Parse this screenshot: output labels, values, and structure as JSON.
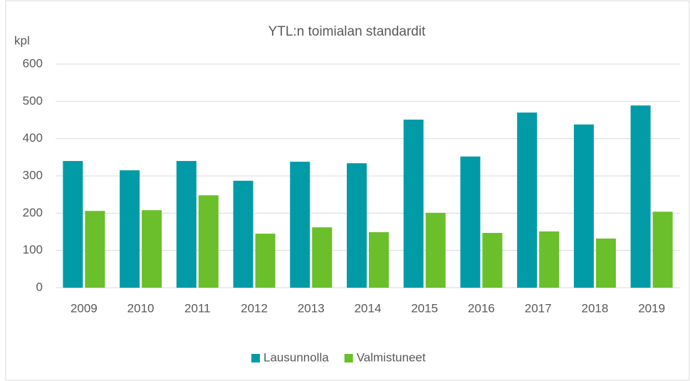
{
  "chart_data": {
    "type": "bar",
    "title": "YTL:n toimialan standardit",
    "ylabel": "kpl",
    "categories": [
      "2009",
      "2010",
      "2011",
      "2012",
      "2013",
      "2014",
      "2015",
      "2016",
      "2017",
      "2018",
      "2019"
    ],
    "series": [
      {
        "name": "Lausunnolla",
        "color": "#009ba7",
        "values": [
          340,
          315,
          340,
          287,
          338,
          334,
          451,
          352,
          470,
          438,
          489
        ]
      },
      {
        "name": "Valmistuneet",
        "color": "#6abf2a",
        "values": [
          206,
          208,
          248,
          145,
          162,
          149,
          201,
          147,
          151,
          132,
          204
        ]
      }
    ],
    "ylim": [
      0,
      600
    ],
    "yticks": [
      0,
      100,
      200,
      300,
      400,
      500,
      600
    ],
    "grid": true,
    "legend": "bottom"
  }
}
